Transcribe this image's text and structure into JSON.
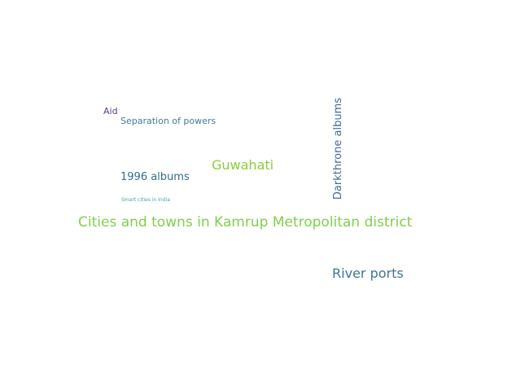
{
  "wordcloud": {
    "words": {
      "aid": {
        "text": "Aid",
        "color": "#5b3a8e"
      },
      "separation_of_powers": {
        "text": "Separation of powers",
        "color": "#3e7d99"
      },
      "guwahati": {
        "text": "Guwahati",
        "color": "#8ccd3a"
      },
      "albums_1996": {
        "text": "1996 albums",
        "color": "#356e8f"
      },
      "smart_cities": {
        "text": "Smart cities in India",
        "color": "#3ea6a0"
      },
      "cities_and_towns": {
        "text": "Cities and towns in Kamrup Metropolitan district",
        "color": "#7fd04c"
      },
      "river_ports": {
        "text": "River ports",
        "color": "#3e7592"
      },
      "darkthrone_albums": {
        "text": "Darkthrone albums",
        "color": "#456a95"
      }
    }
  }
}
